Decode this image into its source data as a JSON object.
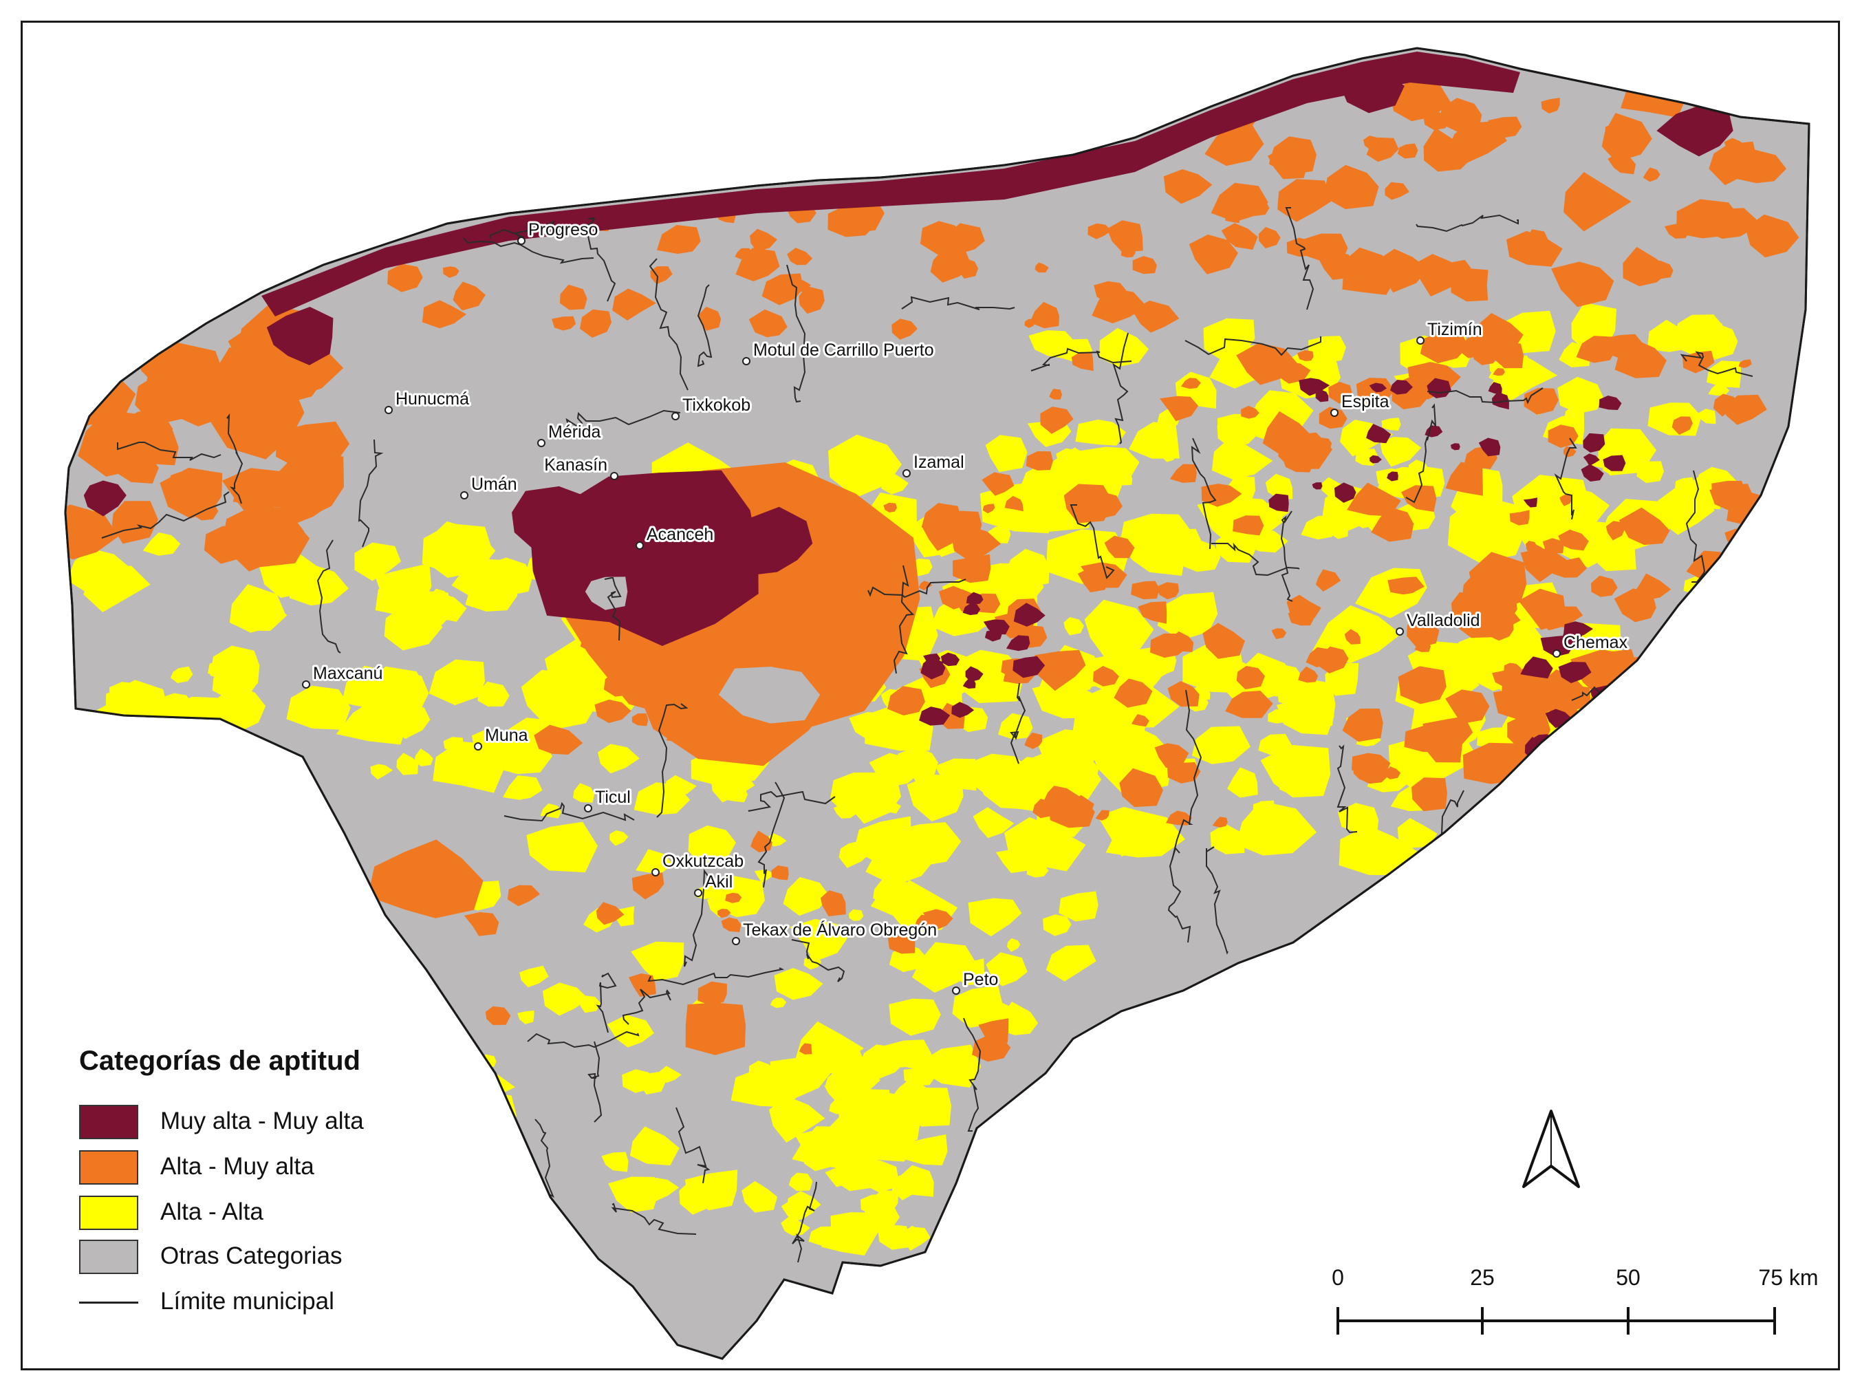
{
  "legend": {
    "title": "Categorías de aptitud",
    "items": [
      {
        "label": "Muy alta - Muy alta",
        "color": "#7b1232"
      },
      {
        "label": "Alta - Muy alta",
        "color": "#f07820"
      },
      {
        "label": "Alta - Alta",
        "color": "#ffff00"
      },
      {
        "label": "Otras Categorias",
        "color": "#bcb9bb"
      }
    ],
    "boundary_label": "Límite municipal"
  },
  "cities": [
    {
      "name": "Progreso"
    },
    {
      "name": "Hunucmá"
    },
    {
      "name": "Mérida"
    },
    {
      "name": "Tixkokob"
    },
    {
      "name": "Motul de Carrillo Puerto"
    },
    {
      "name": "Kanasín"
    },
    {
      "name": "Umán"
    },
    {
      "name": "Izamal"
    },
    {
      "name": "Acanceh"
    },
    {
      "name": "Tizimín"
    },
    {
      "name": "Espita"
    },
    {
      "name": "Valladolid"
    },
    {
      "name": "Chemax"
    },
    {
      "name": "Maxcanú"
    },
    {
      "name": "Muna"
    },
    {
      "name": "Ticul"
    },
    {
      "name": "Oxkutzcab"
    },
    {
      "name": "Akil"
    },
    {
      "name": "Tekax de Álvaro Obregón"
    },
    {
      "name": "Peto"
    }
  ],
  "scale_bar": {
    "ticks": [
      "0",
      "25",
      "50",
      "75 km"
    ]
  },
  "north_arrow": {
    "icon": "north-arrow-icon"
  }
}
